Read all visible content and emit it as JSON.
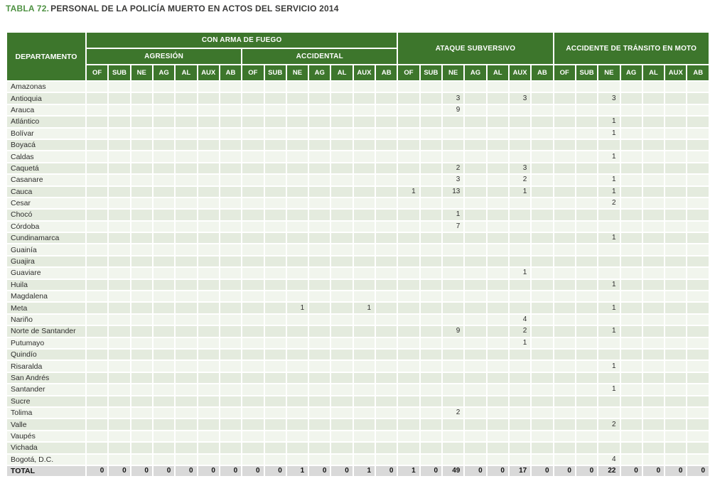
{
  "title": {
    "label": "TABLA 72.",
    "text": "PERSONAL DE LA POLICÍA MUERTO EN ACTOS DEL SERVICIO 2014"
  },
  "colors": {
    "header_green": "#3d762c",
    "title_green": "#4f9243",
    "row_light": "#f1f5ed",
    "row_dark": "#e4ebde",
    "total_row_gray": "#d9d9d9"
  },
  "table": {
    "department_header": "DEPARTAMENTO",
    "groups": [
      {
        "label": "CON ARMA DE FUEGO",
        "subgroups": [
          "AGRESIÓN",
          "ACCIDENTAL"
        ]
      },
      {
        "label": "ATAQUE SUBVERSIVO"
      },
      {
        "label": "ACCIDENTE DE TRÁNSITO EN MOTO"
      }
    ],
    "sub_columns": [
      "OF",
      "SUB",
      "NE",
      "AG",
      "AL",
      "AUX",
      "AB"
    ],
    "sub_column_group_count": 4,
    "rows": [
      {
        "name": "Amazonas",
        "values": [
          "",
          "",
          "",
          "",
          "",
          "",
          "",
          "",
          "",
          "",
          "",
          "",
          "",
          "",
          "",
          "",
          "",
          "",
          "",
          "",
          "",
          "",
          "",
          "",
          "",
          "",
          "",
          ""
        ]
      },
      {
        "name": "Antioquia",
        "values": [
          "",
          "",
          "",
          "",
          "",
          "",
          "",
          "",
          "",
          "",
          "",
          "",
          "",
          "",
          "",
          "",
          "3",
          "",
          "",
          "3",
          "",
          "",
          "",
          "3",
          "",
          "",
          "",
          ""
        ]
      },
      {
        "name": "Arauca",
        "values": [
          "",
          "",
          "",
          "",
          "",
          "",
          "",
          "",
          "",
          "",
          "",
          "",
          "",
          "",
          "",
          "",
          "9",
          "",
          "",
          "",
          "",
          "",
          "",
          "",
          "",
          "",
          "",
          ""
        ]
      },
      {
        "name": "Atlántico",
        "values": [
          "",
          "",
          "",
          "",
          "",
          "",
          "",
          "",
          "",
          "",
          "",
          "",
          "",
          "",
          "",
          "",
          "",
          "",
          "",
          "",
          "",
          "",
          "",
          "1",
          "",
          "",
          "",
          ""
        ]
      },
      {
        "name": "Bolívar",
        "values": [
          "",
          "",
          "",
          "",
          "",
          "",
          "",
          "",
          "",
          "",
          "",
          "",
          "",
          "",
          "",
          "",
          "",
          "",
          "",
          "",
          "",
          "",
          "",
          "1",
          "",
          "",
          "",
          ""
        ]
      },
      {
        "name": "Boyacá",
        "values": [
          "",
          "",
          "",
          "",
          "",
          "",
          "",
          "",
          "",
          "",
          "",
          "",
          "",
          "",
          "",
          "",
          "",
          "",
          "",
          "",
          "",
          "",
          "",
          "",
          "",
          "",
          "",
          ""
        ]
      },
      {
        "name": "Caldas",
        "values": [
          "",
          "",
          "",
          "",
          "",
          "",
          "",
          "",
          "",
          "",
          "",
          "",
          "",
          "",
          "",
          "",
          "",
          "",
          "",
          "",
          "",
          "",
          "",
          "1",
          "",
          "",
          "",
          ""
        ]
      },
      {
        "name": "Caquetá",
        "values": [
          "",
          "",
          "",
          "",
          "",
          "",
          "",
          "",
          "",
          "",
          "",
          "",
          "",
          "",
          "",
          "",
          "2",
          "",
          "",
          "3",
          "",
          "",
          "",
          "",
          "",
          "",
          "",
          ""
        ]
      },
      {
        "name": "Casanare",
        "values": [
          "",
          "",
          "",
          "",
          "",
          "",
          "",
          "",
          "",
          "",
          "",
          "",
          "",
          "",
          "",
          "",
          "3",
          "",
          "",
          "2",
          "",
          "",
          "",
          "1",
          "",
          "",
          "",
          ""
        ]
      },
      {
        "name": "Cauca",
        "values": [
          "",
          "",
          "",
          "",
          "",
          "",
          "",
          "",
          "",
          "",
          "",
          "",
          "",
          "",
          "1",
          "",
          "13",
          "",
          "",
          "1",
          "",
          "",
          "",
          "1",
          "",
          "",
          "",
          ""
        ]
      },
      {
        "name": "Cesar",
        "values": [
          "",
          "",
          "",
          "",
          "",
          "",
          "",
          "",
          "",
          "",
          "",
          "",
          "",
          "",
          "",
          "",
          "",
          "",
          "",
          "",
          "",
          "",
          "",
          "2",
          "",
          "",
          "",
          ""
        ]
      },
      {
        "name": "Chocó",
        "values": [
          "",
          "",
          "",
          "",
          "",
          "",
          "",
          "",
          "",
          "",
          "",
          "",
          "",
          "",
          "",
          "",
          "1",
          "",
          "",
          "",
          "",
          "",
          "",
          "",
          "",
          "",
          "",
          ""
        ]
      },
      {
        "name": "Córdoba",
        "values": [
          "",
          "",
          "",
          "",
          "",
          "",
          "",
          "",
          "",
          "",
          "",
          "",
          "",
          "",
          "",
          "",
          "7",
          "",
          "",
          "",
          "",
          "",
          "",
          "",
          "",
          "",
          "",
          ""
        ]
      },
      {
        "name": "Cundinamarca",
        "values": [
          "",
          "",
          "",
          "",
          "",
          "",
          "",
          "",
          "",
          "",
          "",
          "",
          "",
          "",
          "",
          "",
          "",
          "",
          "",
          "",
          "",
          "",
          "",
          "1",
          "",
          "",
          "",
          ""
        ]
      },
      {
        "name": "Guainía",
        "values": [
          "",
          "",
          "",
          "",
          "",
          "",
          "",
          "",
          "",
          "",
          "",
          "",
          "",
          "",
          "",
          "",
          "",
          "",
          "",
          "",
          "",
          "",
          "",
          "",
          "",
          "",
          "",
          ""
        ]
      },
      {
        "name": "Guajira",
        "values": [
          "",
          "",
          "",
          "",
          "",
          "",
          "",
          "",
          "",
          "",
          "",
          "",
          "",
          "",
          "",
          "",
          "",
          "",
          "",
          "",
          "",
          "",
          "",
          "",
          "",
          "",
          "",
          ""
        ]
      },
      {
        "name": "Guaviare",
        "values": [
          "",
          "",
          "",
          "",
          "",
          "",
          "",
          "",
          "",
          "",
          "",
          "",
          "",
          "",
          "",
          "",
          "",
          "",
          "",
          "1",
          "",
          "",
          "",
          "",
          "",
          "",
          "",
          ""
        ]
      },
      {
        "name": "Huila",
        "values": [
          "",
          "",
          "",
          "",
          "",
          "",
          "",
          "",
          "",
          "",
          "",
          "",
          "",
          "",
          "",
          "",
          "",
          "",
          "",
          "",
          "",
          "",
          "",
          "1",
          "",
          "",
          "",
          ""
        ]
      },
      {
        "name": "Magdalena",
        "values": [
          "",
          "",
          "",
          "",
          "",
          "",
          "",
          "",
          "",
          "",
          "",
          "",
          "",
          "",
          "",
          "",
          "",
          "",
          "",
          "",
          "",
          "",
          "",
          "",
          "",
          "",
          "",
          ""
        ]
      },
      {
        "name": "Meta",
        "values": [
          "",
          "",
          "",
          "",
          "",
          "",
          "",
          "",
          "",
          "1",
          "",
          "",
          "1",
          "",
          "",
          "",
          "",
          "",
          "",
          "",
          "",
          "",
          "",
          "1",
          "",
          "",
          "",
          ""
        ]
      },
      {
        "name": "Nariño",
        "values": [
          "",
          "",
          "",
          "",
          "",
          "",
          "",
          "",
          "",
          "",
          "",
          "",
          "",
          "",
          "",
          "",
          "",
          "",
          "",
          "4",
          "",
          "",
          "",
          "",
          "",
          "",
          "",
          ""
        ]
      },
      {
        "name": "Norte de Santander",
        "values": [
          "",
          "",
          "",
          "",
          "",
          "",
          "",
          "",
          "",
          "",
          "",
          "",
          "",
          "",
          "",
          "",
          "9",
          "",
          "",
          "2",
          "",
          "",
          "",
          "1",
          "",
          "",
          "",
          ""
        ]
      },
      {
        "name": "Putumayo",
        "values": [
          "",
          "",
          "",
          "",
          "",
          "",
          "",
          "",
          "",
          "",
          "",
          "",
          "",
          "",
          "",
          "",
          "",
          "",
          "",
          "1",
          "",
          "",
          "",
          "",
          "",
          "",
          "",
          ""
        ]
      },
      {
        "name": "Quindío",
        "values": [
          "",
          "",
          "",
          "",
          "",
          "",
          "",
          "",
          "",
          "",
          "",
          "",
          "",
          "",
          "",
          "",
          "",
          "",
          "",
          "",
          "",
          "",
          "",
          "",
          "",
          "",
          "",
          ""
        ]
      },
      {
        "name": "Risaralda",
        "values": [
          "",
          "",
          "",
          "",
          "",
          "",
          "",
          "",
          "",
          "",
          "",
          "",
          "",
          "",
          "",
          "",
          "",
          "",
          "",
          "",
          "",
          "",
          "",
          "1",
          "",
          "",
          "",
          ""
        ]
      },
      {
        "name": "San Andrés",
        "values": [
          "",
          "",
          "",
          "",
          "",
          "",
          "",
          "",
          "",
          "",
          "",
          "",
          "",
          "",
          "",
          "",
          "",
          "",
          "",
          "",
          "",
          "",
          "",
          "",
          "",
          "",
          "",
          ""
        ]
      },
      {
        "name": "Santander",
        "values": [
          "",
          "",
          "",
          "",
          "",
          "",
          "",
          "",
          "",
          "",
          "",
          "",
          "",
          "",
          "",
          "",
          "",
          "",
          "",
          "",
          "",
          "",
          "",
          "1",
          "",
          "",
          "",
          ""
        ]
      },
      {
        "name": "Sucre",
        "values": [
          "",
          "",
          "",
          "",
          "",
          "",
          "",
          "",
          "",
          "",
          "",
          "",
          "",
          "",
          "",
          "",
          "",
          "",
          "",
          "",
          "",
          "",
          "",
          "",
          "",
          "",
          "",
          ""
        ]
      },
      {
        "name": "Tolima",
        "values": [
          "",
          "",
          "",
          "",
          "",
          "",
          "",
          "",
          "",
          "",
          "",
          "",
          "",
          "",
          "",
          "",
          "2",
          "",
          "",
          "",
          "",
          "",
          "",
          "",
          "",
          "",
          "",
          ""
        ]
      },
      {
        "name": "Valle",
        "values": [
          "",
          "",
          "",
          "",
          "",
          "",
          "",
          "",
          "",
          "",
          "",
          "",
          "",
          "",
          "",
          "",
          "",
          "",
          "",
          "",
          "",
          "",
          "",
          "2",
          "",
          "",
          "",
          ""
        ]
      },
      {
        "name": "Vaupés",
        "values": [
          "",
          "",
          "",
          "",
          "",
          "",
          "",
          "",
          "",
          "",
          "",
          "",
          "",
          "",
          "",
          "",
          "",
          "",
          "",
          "",
          "",
          "",
          "",
          "",
          "",
          "",
          "",
          ""
        ]
      },
      {
        "name": "Vichada",
        "values": [
          "",
          "",
          "",
          "",
          "",
          "",
          "",
          "",
          "",
          "",
          "",
          "",
          "",
          "",
          "",
          "",
          "",
          "",
          "",
          "",
          "",
          "",
          "",
          "",
          "",
          "",
          "",
          ""
        ]
      },
      {
        "name": "Bogotá, D.C.",
        "values": [
          "",
          "",
          "",
          "",
          "",
          "",
          "",
          "",
          "",
          "",
          "",
          "",
          "",
          "",
          "",
          "",
          "",
          "",
          "",
          "",
          "",
          "",
          "",
          "4",
          "",
          "",
          "",
          ""
        ]
      }
    ],
    "total": {
      "name": "TOTAL",
      "values": [
        "0",
        "0",
        "0",
        "0",
        "0",
        "0",
        "0",
        "0",
        "0",
        "1",
        "0",
        "0",
        "1",
        "0",
        "1",
        "0",
        "49",
        "0",
        "0",
        "17",
        "0",
        "0",
        "0",
        "22",
        "0",
        "0",
        "0",
        "0"
      ]
    }
  }
}
